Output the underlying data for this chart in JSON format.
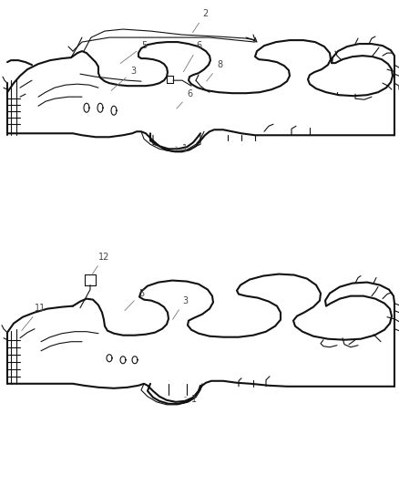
{
  "bg_color": "#ffffff",
  "line_color": "#111111",
  "label_color": "#444444",
  "leader_color": "#777777",
  "fig_width": 4.38,
  "fig_height": 5.33,
  "dpi": 100
}
